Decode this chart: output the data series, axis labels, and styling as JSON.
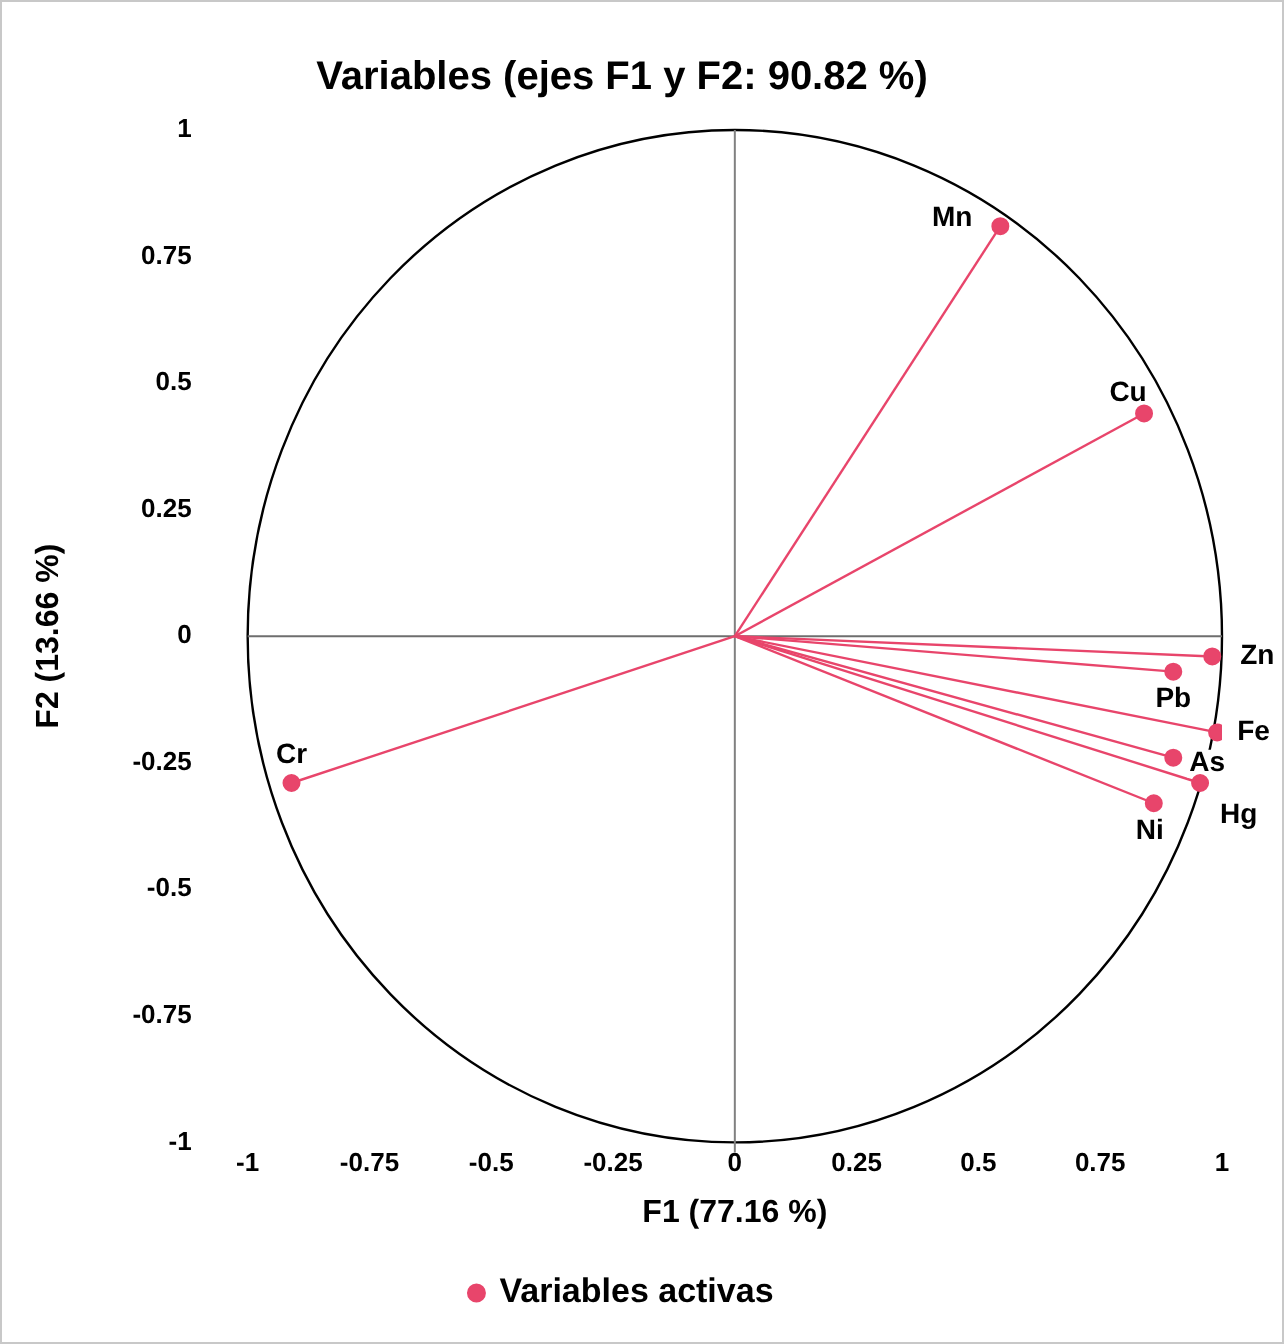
{
  "chart_data": {
    "type": "scatter",
    "title": "Variables (ejes F1 y F2: 90.82 %)",
    "xlabel": "F1 (77.16 %)",
    "ylabel": "F2 (13.66 %)",
    "series": [
      {
        "name": "Variables activas",
        "color": "#e8456b",
        "x": [
          0.545,
          0.84,
          0.98,
          0.9,
          0.99,
          0.9,
          0.955,
          0.86,
          -0.91
        ],
        "values": [
          0.81,
          0.44,
          -0.04,
          -0.07,
          -0.19,
          -0.24,
          -0.29,
          -0.33,
          -0.29
        ]
      }
    ],
    "annotations": [
      {
        "text": "Mn",
        "x": 0.545,
        "y": 0.81
      },
      {
        "text": "Cu",
        "x": 0.84,
        "y": 0.44
      },
      {
        "text": "Zn",
        "x": 0.98,
        "y": -0.04
      },
      {
        "text": "Pb",
        "x": 0.9,
        "y": -0.07
      },
      {
        "text": "Fe",
        "x": 0.99,
        "y": -0.19
      },
      {
        "text": "As",
        "x": 0.9,
        "y": -0.24
      },
      {
        "text": "Hg",
        "x": 0.955,
        "y": -0.29
      },
      {
        "text": "Ni",
        "x": 0.86,
        "y": -0.33
      },
      {
        "text": "Cr",
        "x": -0.91,
        "y": -0.29
      }
    ],
    "ref_lines": [
      {
        "axis": "x",
        "value": 0,
        "color": "#808080"
      },
      {
        "axis": "y",
        "value": 0,
        "color": "#6e6e6e"
      }
    ],
    "xlim": [
      -1,
      1
    ],
    "ylim": [
      -1,
      1
    ],
    "xticks": [
      -1,
      -0.75,
      -0.5,
      -0.25,
      0,
      0.25,
      0.5,
      0.75,
      1
    ],
    "yticks": [
      -1,
      -0.75,
      -0.5,
      -0.25,
      0,
      0.25,
      0.5,
      0.75,
      1
    ],
    "grid": false,
    "legend": "bottom",
    "marker": "circle"
  }
}
